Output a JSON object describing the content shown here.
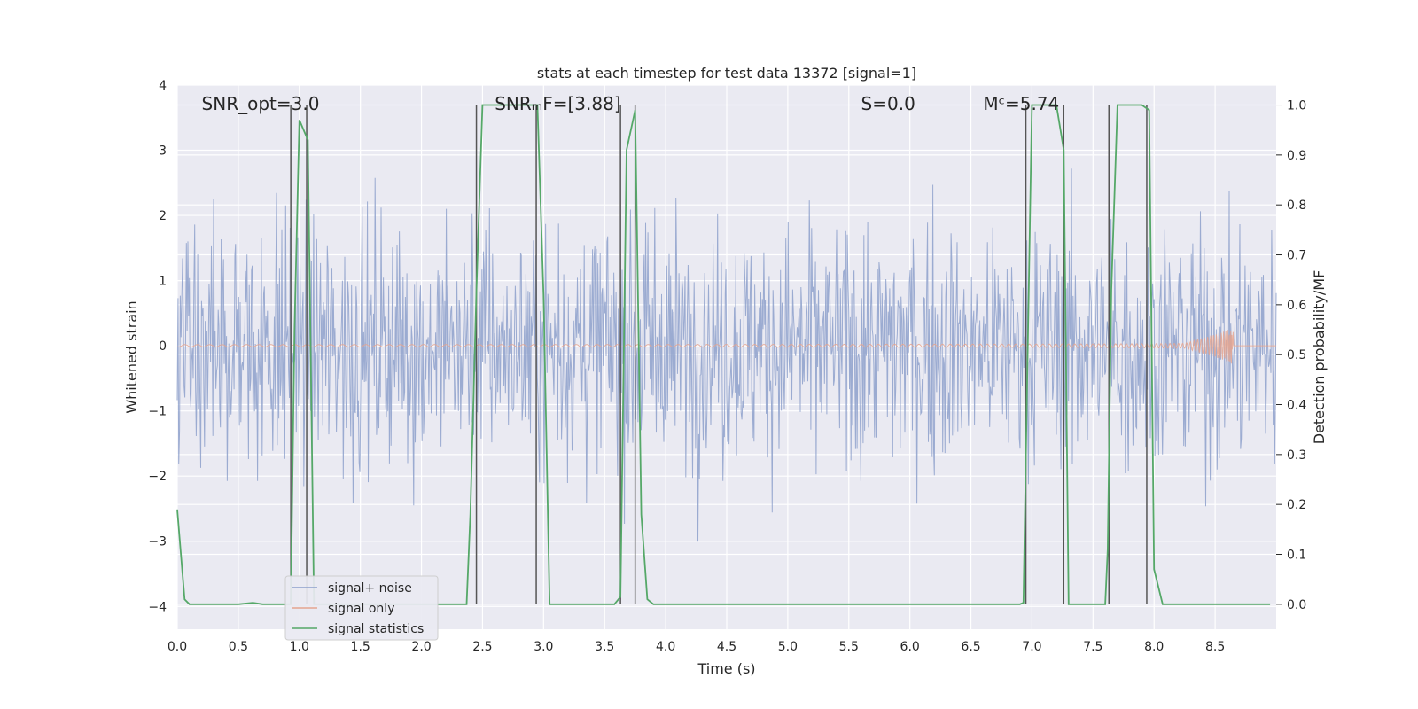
{
  "chart_data": {
    "type": "line",
    "title": "stats at each timestep for test data 13372 [signal=1]",
    "xlabel": "Time (s)",
    "ylabel": "Whitened strain",
    "ylabel_right": "Detection probability/MF",
    "xlim": [
      0,
      9.0
    ],
    "ylim": [
      -4.35,
      4.0
    ],
    "ylim_right": [
      -0.05,
      1.04
    ],
    "x_ticks": [
      0.0,
      0.5,
      1.0,
      1.5,
      2.0,
      2.5,
      3.0,
      3.5,
      4.0,
      4.5,
      5.0,
      5.5,
      6.0,
      6.5,
      7.0,
      7.5,
      8.0,
      8.5
    ],
    "x_tick_labels": [
      "0.0",
      "0.5",
      "1.0",
      "1.5",
      "2.0",
      "2.5",
      "3.0",
      "3.5",
      "4.0",
      "4.5",
      "5.0",
      "5.5",
      "6.0",
      "6.5",
      "7.0",
      "7.5",
      "8.0",
      "8.5"
    ],
    "y_ticks": [
      4,
      3,
      2,
      1,
      0,
      -1,
      -2,
      -3,
      -4
    ],
    "y_tick_labels": [
      "4",
      "3",
      "2",
      "1",
      "0",
      "−1",
      "−2",
      "−3",
      "−4"
    ],
    "y_ticks_right": [
      1.0,
      0.9,
      0.8,
      0.7,
      0.6,
      0.5,
      0.4,
      0.3,
      0.2,
      0.1,
      0.0
    ],
    "y_tick_labels_right": [
      "1.0",
      "0.9",
      "0.8",
      "0.7",
      "0.6",
      "0.5",
      "0.4",
      "0.3",
      "0.2",
      "0.1",
      "0.0"
    ],
    "grid": true,
    "legend_position": "lower-left",
    "annotations": [
      {
        "text": "SNR_opt=3.0",
        "x": 0.2
      },
      {
        "text": "SNRₘF=[3.88]",
        "x": 2.6
      },
      {
        "text": "S=0.0",
        "x": 5.6
      },
      {
        "text": "Mᶜ=5.74",
        "x": 6.6
      }
    ],
    "series": [
      {
        "name": "signal+ noise",
        "color": "#8da0cb",
        "kind": "noise",
        "amplitude_typical": 1.6,
        "amplitude_max": 3.6
      },
      {
        "name": "signal only",
        "color": "#e5a58f",
        "kind": "chirp",
        "t_merge": 8.65,
        "peak_amplitude": 0.35
      },
      {
        "name": "signal statistics",
        "color": "#55a868",
        "axis": "right",
        "x": [
          0.0,
          0.06,
          0.1,
          0.15,
          0.5,
          0.62,
          0.7,
          0.9,
          0.93,
          0.96,
          1.0,
          1.07,
          1.12,
          1.15,
          2.3,
          2.37,
          2.4,
          2.45,
          2.5,
          2.9,
          2.95,
          3.0,
          3.05,
          3.58,
          3.63,
          3.68,
          3.75,
          3.8,
          3.85,
          3.9,
          6.9,
          6.93,
          6.95,
          7.0,
          7.2,
          7.26,
          7.3,
          7.6,
          7.62,
          7.65,
          7.7,
          7.9,
          7.96,
          8.0,
          8.07,
          8.1,
          8.95
        ],
        "y": [
          0.19,
          0.01,
          0.0,
          0.0,
          0.0,
          0.003,
          0.0,
          0.0,
          0.0,
          0.55,
          0.97,
          0.93,
          0.0,
          0.0,
          0.0,
          0.0,
          0.18,
          0.63,
          1.0,
          1.0,
          1.0,
          0.62,
          0.0,
          0.0,
          0.015,
          0.91,
          0.99,
          0.18,
          0.01,
          0.0,
          0.0,
          0.003,
          0.3,
          1.0,
          1.0,
          0.91,
          0.0,
          0.0,
          0.11,
          0.63,
          1.0,
          1.0,
          0.99,
          0.07,
          0.0,
          0.0,
          0.0
        ]
      },
      {
        "name": "",
        "color": "#555555",
        "kind": "vlines",
        "x": [
          0.93,
          1.06,
          2.45,
          2.94,
          3.63,
          3.75,
          6.95,
          7.26,
          7.63,
          7.94
        ]
      }
    ]
  }
}
